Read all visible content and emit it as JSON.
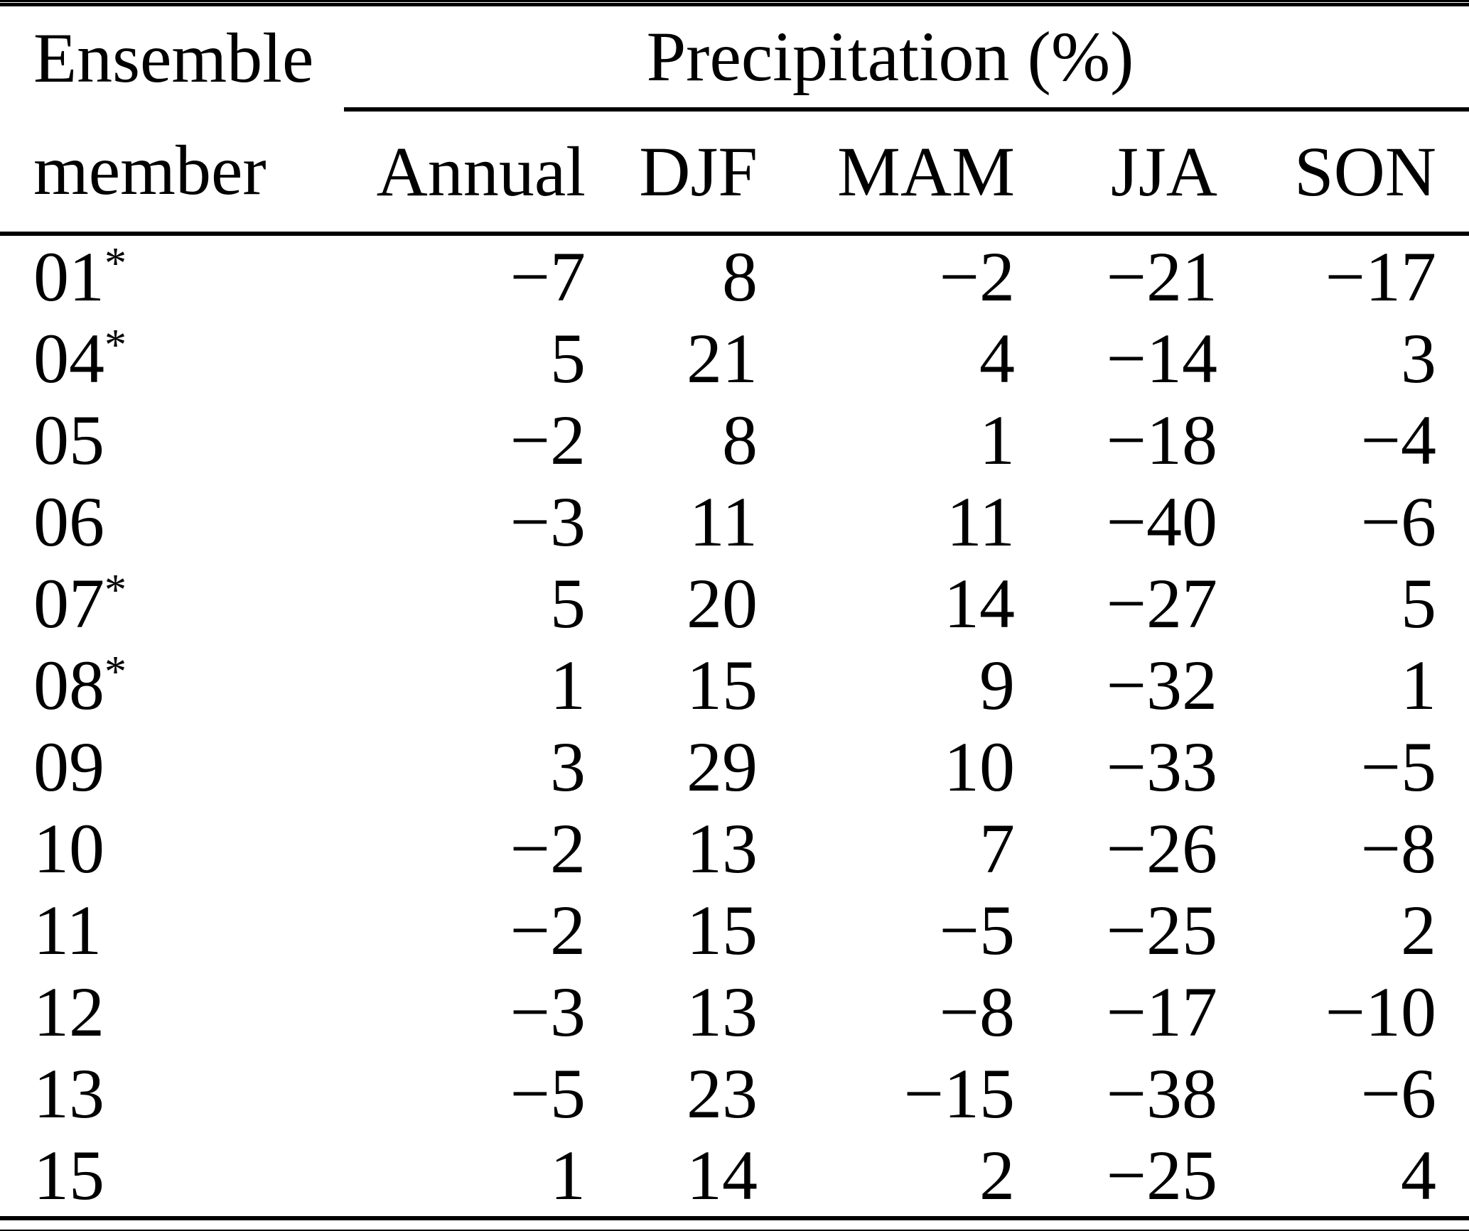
{
  "table": {
    "col1_header_line1": "Ensemble",
    "col1_header_line2": "member",
    "group_header": "Precipitation (%)",
    "columns": [
      "Annual",
      "DJF",
      "MAM",
      "JJA",
      "SON"
    ],
    "rows": [
      {
        "member": "01",
        "star": "*",
        "values": [
          "−7",
          "8",
          "−2",
          "−21",
          "−17"
        ]
      },
      {
        "member": "04",
        "star": "*",
        "values": [
          "5",
          "21",
          "4",
          "−14",
          "3"
        ]
      },
      {
        "member": "05",
        "star": "",
        "values": [
          "−2",
          "8",
          "1",
          "−18",
          "−4"
        ]
      },
      {
        "member": "06",
        "star": "",
        "values": [
          "−3",
          "11",
          "11",
          "−40",
          "−6"
        ]
      },
      {
        "member": "07",
        "star": "*",
        "values": [
          "5",
          "20",
          "14",
          "−27",
          "5"
        ]
      },
      {
        "member": "08",
        "star": "*",
        "values": [
          "1",
          "15",
          "9",
          "−32",
          "1"
        ]
      },
      {
        "member": "09",
        "star": "",
        "values": [
          "3",
          "29",
          "10",
          "−33",
          "−5"
        ]
      },
      {
        "member": "10",
        "star": "",
        "values": [
          "−2",
          "13",
          "7",
          "−26",
          "−8"
        ]
      },
      {
        "member": "11",
        "star": "",
        "values": [
          "−2",
          "15",
          "−5",
          "−25",
          "2"
        ]
      },
      {
        "member": "12",
        "star": "",
        "values": [
          "−3",
          "13",
          "−8",
          "−17",
          "−10"
        ]
      },
      {
        "member": "13",
        "star": "",
        "values": [
          "−5",
          "23",
          "−15",
          "−38",
          "−6"
        ]
      },
      {
        "member": "15",
        "star": "",
        "values": [
          "1",
          "14",
          "2",
          "−25",
          "4"
        ]
      }
    ],
    "text_color": "#000000",
    "background_color": "#ffffff"
  }
}
